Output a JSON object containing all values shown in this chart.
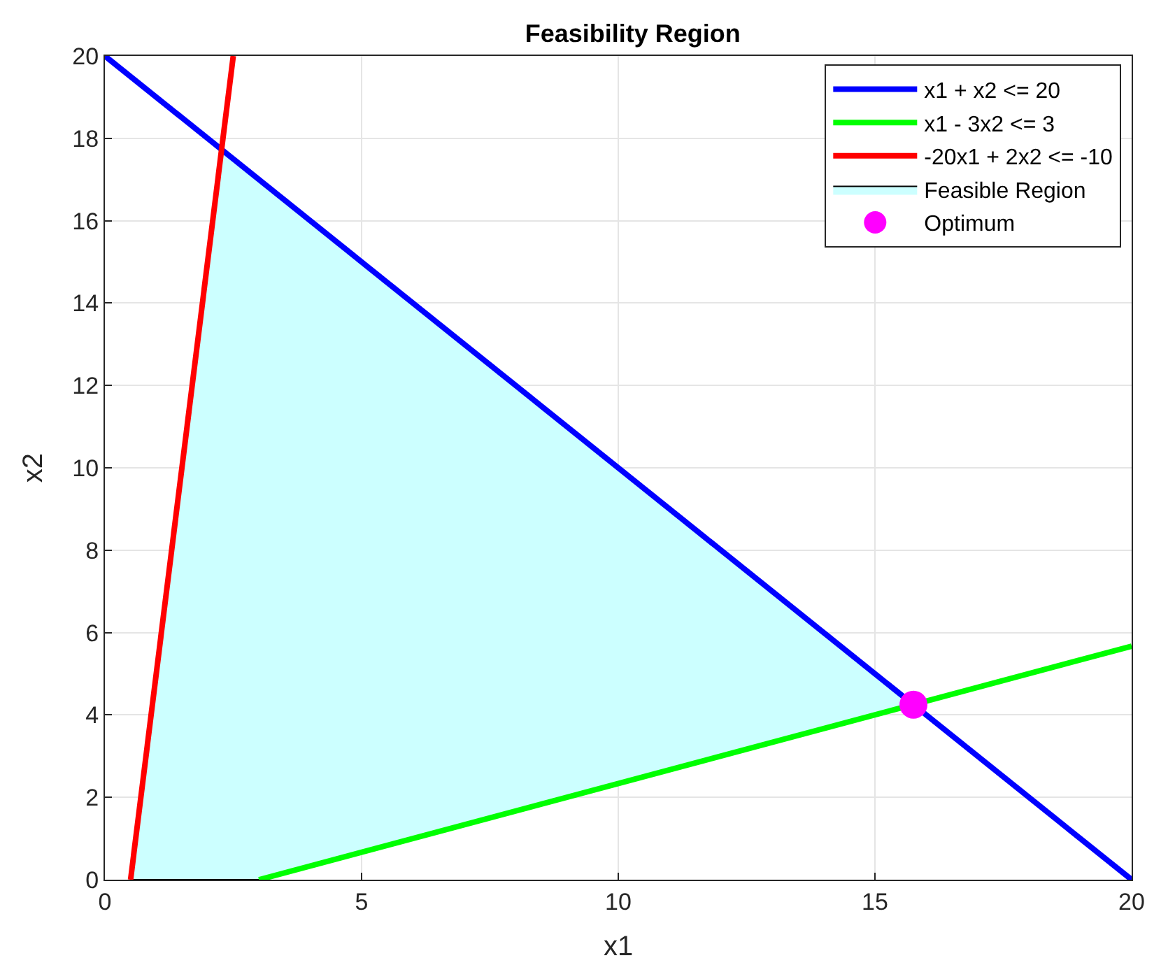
{
  "chart_data": {
    "type": "line",
    "title": "Feasibility Region",
    "xlabel": "x1",
    "ylabel": "x2",
    "xlim": [
      0,
      20
    ],
    "ylim": [
      0,
      20
    ],
    "xticks": [
      0,
      5,
      10,
      15,
      20
    ],
    "yticks": [
      0,
      2,
      4,
      6,
      8,
      10,
      12,
      14,
      16,
      18,
      20
    ],
    "grid": true,
    "legend": "top right",
    "series": [
      {
        "type": "area",
        "name": "Feasible Region",
        "color": "#ccffff",
        "x": [
          0.5,
          3,
          15.75,
          2.27,
          0.5
        ],
        "values": [
          0,
          0,
          4.25,
          17.73,
          0
        ]
      },
      {
        "name": "x1 + x2 <= 20",
        "color": "#0000ff",
        "x": [
          0,
          20
        ],
        "values": [
          20,
          0
        ]
      },
      {
        "name": "x1 - 3x2 <= 3",
        "color": "#00ff00",
        "x": [
          3,
          20
        ],
        "values": [
          0,
          5.67
        ]
      },
      {
        "name": "-20x1 + 2x2 <= -10",
        "color": "#ff0000",
        "x": [
          0.5,
          2.5
        ],
        "values": [
          0,
          20
        ]
      },
      {
        "type": "scatter",
        "name": "Optimum",
        "color": "#ff00ff",
        "marker": "circle",
        "x": [
          15.75
        ],
        "values": [
          4.25
        ]
      }
    ]
  }
}
